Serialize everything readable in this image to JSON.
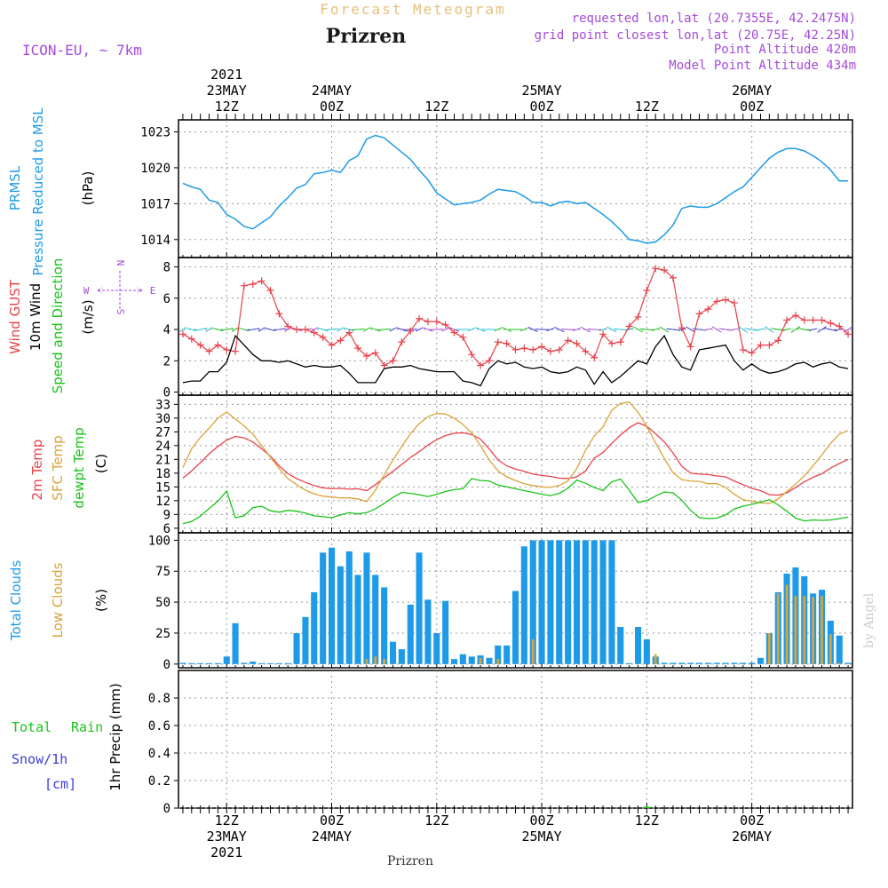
{
  "header": {
    "subtitle": "Forecast Meteogram",
    "station": "Prizren",
    "model": "ICON-EU, ~ 7km",
    "info": [
      "requested lon,lat (20.7355E, 42.2475N)",
      "grid point closest lon,lat (20.75E, 42.25N)",
      "Point Altitude 420m",
      "Model Point Altitude 434m"
    ],
    "watermark": "by Angel",
    "bottom_label": "Prizren"
  },
  "colors": {
    "pressure": "#1e9be8",
    "gust": "#e8414a",
    "wind": "#000000",
    "dir": "#19c419",
    "t2m": "#e8414a",
    "sfc": "#d9a43a",
    "dew": "#19c419",
    "total_clouds": "#1e9be8",
    "low_clouds": "#d9a43a",
    "rain": "#19c419",
    "snow": "#3b3bd9",
    "info": "#a64ad9",
    "subtitle": "#e8c07a"
  },
  "time_axis": {
    "top_labels": [
      {
        "h": 12,
        "lines": [
          "2021",
          "23MAY",
          "12Z"
        ]
      },
      {
        "h": 24,
        "lines": [
          "24MAY",
          "00Z"
        ]
      },
      {
        "h": 36,
        "lines": [
          "12Z"
        ]
      },
      {
        "h": 48,
        "lines": [
          "25MAY",
          "00Z"
        ]
      },
      {
        "h": 60,
        "lines": [
          "12Z"
        ]
      },
      {
        "h": 72,
        "lines": [
          "26MAY",
          "00Z"
        ]
      }
    ],
    "bottom_labels": [
      {
        "h": 12,
        "lines": [
          "12Z",
          "23MAY",
          "2021"
        ]
      },
      {
        "h": 24,
        "lines": [
          "00Z",
          "24MAY"
        ]
      },
      {
        "h": 36,
        "lines": [
          "12Z"
        ]
      },
      {
        "h": 48,
        "lines": [
          "00Z",
          "25MAY"
        ]
      },
      {
        "h": 60,
        "lines": [
          "12Z"
        ]
      },
      {
        "h": 72,
        "lines": [
          "00Z",
          "26MAY"
        ]
      }
    ]
  },
  "chart_data": [
    {
      "type": "line",
      "panel": "pressure",
      "ylabel": [
        "PRMSL",
        "Pressure Reduced to MSL",
        "(hPa)"
      ],
      "ylim": [
        1012.5,
        1024
      ],
      "yticks": [
        1014,
        1017,
        1020,
        1023
      ],
      "x": [
        7,
        8,
        9,
        10,
        11,
        12,
        13,
        14,
        15,
        16,
        17,
        18,
        19,
        20,
        21,
        22,
        23,
        24,
        25,
        26,
        27,
        28,
        29,
        30,
        31,
        32,
        33,
        34,
        35,
        36,
        37,
        38,
        39,
        40,
        41,
        42,
        43,
        44,
        45,
        46,
        47,
        48,
        49,
        50,
        51,
        52,
        53,
        54,
        55,
        56,
        57,
        58,
        59,
        60,
        61,
        62,
        63,
        64,
        65,
        66,
        67,
        68,
        69,
        70,
        71,
        72,
        73,
        74,
        75,
        76,
        77,
        78,
        79,
        80,
        81,
        82,
        83
      ],
      "series": [
        {
          "name": "PRMSL",
          "values": [
            1018.7,
            1018.4,
            1018.2,
            1017.3,
            1017.1,
            1016.1,
            1015.7,
            1015.1,
            1014.9,
            1015.4,
            1015.9,
            1016.8,
            1017.5,
            1018.3,
            1018.6,
            1019.5,
            1019.6,
            1019.8,
            1019.6,
            1020.6,
            1021.0,
            1022.4,
            1022.7,
            1022.5,
            1021.9,
            1021.3,
            1020.7,
            1019.8,
            1019.0,
            1017.9,
            1017.4,
            1016.9,
            1017.0,
            1017.1,
            1017.3,
            1017.8,
            1018.2,
            1018.1,
            1018.0,
            1017.6,
            1017.1,
            1017.1,
            1016.8,
            1017.1,
            1017.2,
            1017.0,
            1017.1,
            1016.6,
            1016.1,
            1015.5,
            1014.8,
            1014.0,
            1013.9,
            1013.7,
            1013.8,
            1014.4,
            1015.2,
            1016.6,
            1016.8,
            1016.7,
            1016.7,
            1017.0,
            1017.5,
            1018.0,
            1018.4,
            1019.2,
            1020.0,
            1020.8,
            1021.3,
            1021.6,
            1021.6,
            1021.4,
            1021.0,
            1020.5,
            1019.8,
            1018.9,
            1018.9
          ]
        }
      ]
    },
    {
      "type": "line",
      "panel": "wind",
      "ylabel": [
        "Wind GUST",
        "10m Wind",
        "Speed and Direction",
        "(m/s)"
      ],
      "compass": [
        "N",
        "S",
        "W",
        "E"
      ],
      "ylim": [
        -0.2,
        8.6
      ],
      "yticks": [
        0,
        2,
        4,
        6,
        8
      ],
      "x": [
        7,
        8,
        9,
        10,
        11,
        12,
        13,
        14,
        15,
        16,
        17,
        18,
        19,
        20,
        21,
        22,
        23,
        24,
        25,
        26,
        27,
        28,
        29,
        30,
        31,
        32,
        33,
        34,
        35,
        36,
        37,
        38,
        39,
        40,
        41,
        42,
        43,
        44,
        45,
        46,
        47,
        48,
        49,
        50,
        51,
        52,
        53,
        54,
        55,
        56,
        57,
        58,
        59,
        60,
        61,
        62,
        63,
        64,
        65,
        66,
        67,
        68,
        69,
        70,
        71,
        72,
        73,
        74,
        75,
        76,
        77,
        78,
        79,
        80,
        81,
        82,
        83
      ],
      "series": [
        {
          "name": "Wind GUST",
          "values": [
            3.7,
            3.4,
            3.0,
            2.6,
            3.0,
            2.7,
            2.6,
            6.8,
            6.9,
            7.1,
            6.5,
            5.0,
            4.2,
            4.0,
            4.0,
            3.8,
            3.5,
            3.0,
            3.3,
            3.8,
            2.8,
            2.3,
            2.5,
            1.7,
            2.0,
            3.2,
            3.9,
            4.7,
            4.5,
            4.5,
            4.3,
            3.8,
            3.5,
            2.4,
            1.7,
            2.0,
            3.2,
            3.1,
            2.7,
            2.8,
            2.7,
            2.9,
            2.6,
            2.7,
            3.3,
            3.1,
            2.6,
            2.2,
            3.7,
            3.1,
            3.2,
            4.2,
            4.8,
            6.5,
            7.9,
            7.8,
            7.3,
            4.1,
            2.9,
            5.0,
            5.3,
            5.8,
            5.9,
            5.7,
            2.7,
            2.5,
            3.0,
            3.0,
            3.3,
            4.6,
            4.9,
            4.6,
            4.6,
            4.6,
            4.4,
            4.2,
            3.7
          ]
        },
        {
          "name": "10m Wind",
          "values": [
            0.6,
            0.7,
            0.7,
            1.3,
            1.3,
            1.9,
            3.6,
            3.0,
            2.4,
            2.0,
            2.0,
            1.9,
            2.0,
            1.8,
            1.6,
            1.7,
            1.6,
            1.6,
            1.7,
            1.2,
            0.6,
            0.6,
            0.6,
            1.5,
            1.6,
            1.6,
            1.7,
            1.5,
            1.4,
            1.3,
            1.3,
            1.3,
            0.7,
            0.6,
            0.4,
            1.5,
            2.0,
            1.8,
            1.9,
            1.6,
            1.5,
            1.6,
            1.3,
            1.2,
            1.3,
            1.6,
            1.4,
            0.5,
            1.3,
            0.6,
            1.0,
            1.5,
            2.0,
            1.8,
            2.9,
            3.6,
            2.4,
            1.6,
            1.4,
            2.7,
            2.8,
            2.9,
            3.0,
            2.0,
            1.4,
            1.8,
            1.4,
            1.2,
            1.3,
            1.5,
            1.8,
            1.9,
            1.6,
            1.8,
            1.9,
            1.6,
            1.5
          ]
        }
      ]
    },
    {
      "type": "line",
      "panel": "temperature",
      "ylabel": [
        "2m Temp",
        "SFC Temp",
        "dewpt Temp",
        "(C)"
      ],
      "ylim": [
        5,
        35
      ],
      "yticks": [
        6,
        9,
        12,
        15,
        18,
        21,
        24,
        27,
        30,
        33
      ],
      "x": [
        7,
        8,
        9,
        10,
        11,
        12,
        13,
        14,
        15,
        16,
        17,
        18,
        19,
        20,
        21,
        22,
        23,
        24,
        25,
        26,
        27,
        28,
        29,
        30,
        31,
        32,
        33,
        34,
        35,
        36,
        37,
        38,
        39,
        40,
        41,
        42,
        43,
        44,
        45,
        46,
        47,
        48,
        49,
        50,
        51,
        52,
        53,
        54,
        55,
        56,
        57,
        58,
        59,
        60,
        61,
        62,
        63,
        64,
        65,
        66,
        67,
        68,
        69,
        70,
        71,
        72,
        73,
        74,
        75,
        76,
        77,
        78,
        79,
        80,
        81,
        82,
        83
      ],
      "series": [
        {
          "name": "2m Temp",
          "values": [
            16.9,
            18.5,
            20.3,
            22.2,
            23.8,
            25.2,
            26.0,
            25.7,
            24.8,
            23.3,
            21.7,
            19.6,
            17.9,
            16.8,
            16.0,
            15.3,
            14.8,
            14.6,
            14.7,
            14.5,
            14.6,
            14.2,
            15.5,
            17.0,
            18.4,
            19.9,
            21.4,
            22.7,
            24.1,
            25.3,
            26.2,
            26.7,
            26.8,
            26.4,
            25.4,
            23.3,
            20.9,
            19.6,
            18.9,
            18.4,
            17.8,
            17.5,
            17.3,
            16.9,
            16.8,
            17.2,
            18.5,
            21.3,
            22.5,
            24.5,
            26.3,
            27.9,
            29.0,
            28.2,
            26.6,
            24.8,
            22.4,
            19.5,
            18.0,
            17.8,
            17.7,
            17.4,
            17.2,
            16.3,
            15.5,
            14.7,
            14.2,
            13.3,
            13.2,
            13.7,
            14.9,
            16.1,
            17.1,
            17.9,
            19.1,
            20.1,
            21.0
          ]
        },
        {
          "name": "SFC Temp",
          "values": [
            19.2,
            23.3,
            25.8,
            27.8,
            30.0,
            31.3,
            29.8,
            28.3,
            26.5,
            24.0,
            21.5,
            19.0,
            16.8,
            15.5,
            14.3,
            13.5,
            13.0,
            12.8,
            12.6,
            12.6,
            12.4,
            11.8,
            14.3,
            17.6,
            20.9,
            23.8,
            26.6,
            28.8,
            30.3,
            31.0,
            30.9,
            30.0,
            28.6,
            26.8,
            24.0,
            20.9,
            18.5,
            17.2,
            16.4,
            15.7,
            15.3,
            15.0,
            14.9,
            15.3,
            16.3,
            19.0,
            23.0,
            26.1,
            28.1,
            31.7,
            33.2,
            33.5,
            31.3,
            28.2,
            24.6,
            21.2,
            18.1,
            16.6,
            16.3,
            16.2,
            15.7,
            15.7,
            14.9,
            13.4,
            12.2,
            11.9,
            11.5,
            11.4,
            12.4,
            14.0,
            15.6,
            17.4,
            19.6,
            22.0,
            24.5,
            26.5,
            27.3
          ]
        },
        {
          "name": "dewpt Temp",
          "values": [
            7.0,
            7.5,
            8.6,
            10.3,
            11.9,
            14.1,
            8.3,
            8.7,
            10.5,
            10.8,
            9.8,
            9.5,
            9.9,
            9.7,
            9.3,
            8.7,
            8.5,
            8.3,
            8.9,
            9.4,
            9.1,
            9.4,
            10.2,
            11.4,
            12.7,
            13.8,
            13.6,
            13.3,
            12.9,
            13.4,
            14.0,
            14.4,
            14.6,
            16.8,
            16.4,
            16.3,
            15.4,
            15.0,
            14.6,
            14.2,
            13.8,
            13.4,
            13.1,
            13.6,
            14.7,
            16.5,
            15.8,
            14.9,
            14.2,
            16.1,
            16.7,
            14.3,
            11.6,
            12.0,
            13.0,
            13.9,
            13.7,
            12.1,
            9.9,
            8.3,
            8.1,
            8.2,
            8.9,
            10.2,
            10.8,
            11.2,
            11.7,
            12.2,
            11.1,
            9.7,
            8.2,
            7.6,
            7.8,
            7.7,
            7.8,
            8.1,
            8.4
          ]
        }
      ]
    },
    {
      "type": "bar",
      "panel": "clouds",
      "ylabel": [
        "Total Clouds",
        "Low Clouds",
        "(%)"
      ],
      "ylim": [
        -3,
        106
      ],
      "yticks": [
        0,
        25,
        50,
        75,
        100
      ],
      "x": [
        7,
        8,
        9,
        10,
        11,
        12,
        13,
        14,
        15,
        16,
        17,
        18,
        19,
        20,
        21,
        22,
        23,
        24,
        25,
        26,
        27,
        28,
        29,
        30,
        31,
        32,
        33,
        34,
        35,
        36,
        37,
        38,
        39,
        40,
        41,
        42,
        43,
        44,
        45,
        46,
        47,
        48,
        49,
        50,
        51,
        52,
        53,
        54,
        55,
        56,
        57,
        58,
        59,
        60,
        61,
        62,
        63,
        64,
        65,
        66,
        67,
        68,
        69,
        70,
        71,
        72,
        73,
        74,
        75,
        76,
        77,
        78,
        79,
        80,
        81,
        82,
        83
      ],
      "series": [
        {
          "name": "Total Clouds",
          "values": [
            1,
            0,
            0,
            0,
            0,
            6,
            33,
            1,
            2,
            0,
            0,
            0,
            0,
            25,
            38,
            58,
            90,
            94,
            79,
            91,
            72,
            90,
            72,
            62,
            18,
            12,
            48,
            90,
            52,
            25,
            51,
            4,
            8,
            6,
            7,
            5,
            15,
            15,
            59,
            95,
            100,
            100,
            100,
            100,
            100,
            100,
            100,
            100,
            100,
            100,
            30,
            0,
            30,
            20,
            6,
            1,
            1,
            1,
            1,
            1,
            1,
            1,
            1,
            1,
            1,
            1,
            5,
            25,
            58,
            73,
            78,
            71,
            57,
            60,
            35,
            23,
            1
          ]
        },
        {
          "name": "Low Clouds",
          "values": [
            0,
            0,
            0,
            0,
            0,
            0,
            0,
            0,
            0,
            0,
            0,
            0,
            0,
            0,
            0,
            0,
            0,
            0,
            0,
            0,
            0,
            4,
            6,
            4,
            0,
            0,
            0,
            0,
            0,
            0,
            0,
            0,
            0,
            0,
            5,
            0,
            4,
            0,
            0,
            0,
            20,
            0,
            0,
            0,
            0,
            0,
            0,
            0,
            0,
            0,
            0,
            0,
            0,
            0,
            8,
            0,
            0,
            0,
            0,
            0,
            0,
            0,
            0,
            0,
            0,
            0,
            0,
            25,
            57,
            64,
            55,
            55,
            54,
            55,
            24,
            1,
            0
          ]
        }
      ]
    },
    {
      "type": "bar",
      "panel": "precip",
      "ylabel": [
        "1hr Precip (mm)"
      ],
      "legend": [
        "Total",
        "Rain",
        "Snow/1h",
        "[cm]"
      ],
      "ylim": [
        0,
        1.0
      ],
      "yticks": [
        0,
        0.2,
        0.4,
        0.6,
        0.8
      ],
      "ytick_labels": [
        "0",
        "0.2",
        "0.4",
        "0.6",
        "0.8"
      ],
      "x": [
        60
      ],
      "series": [
        {
          "name": "Rain",
          "values": [
            0.01
          ]
        }
      ]
    }
  ]
}
